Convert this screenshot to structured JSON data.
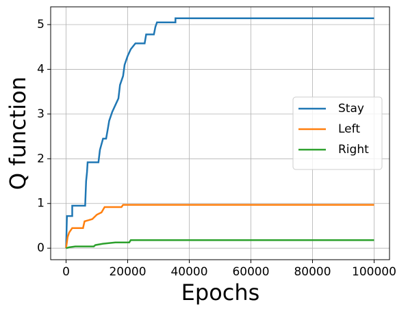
{
  "chart_data": {
    "type": "line",
    "x_label": "Epochs",
    "y_label": "Q function",
    "xlim": [
      -5000,
      105000
    ],
    "ylim": [
      -0.257,
      5.397
    ],
    "xticks": [
      0,
      20000,
      40000,
      60000,
      80000,
      100000
    ],
    "yticks": [
      0,
      1,
      2,
      3,
      4,
      5
    ],
    "grid": true,
    "legend": "center right",
    "series": [
      {
        "name": "Stay",
        "color": "#1f77b4",
        "x": [
          0,
          300,
          2000,
          2000,
          6200,
          6500,
          6800,
          7000,
          10500,
          11000,
          12000,
          13000,
          13500,
          14000,
          15000,
          16000,
          17000,
          17500,
          18500,
          19000,
          20000,
          21000,
          22500,
          25500,
          26000,
          28500,
          29000,
          29500,
          35500,
          35500,
          100000
        ],
        "values": [
          0,
          0.72,
          0.72,
          0.95,
          0.95,
          1.5,
          1.7,
          1.92,
          1.92,
          2.2,
          2.45,
          2.45,
          2.65,
          2.85,
          3.05,
          3.2,
          3.35,
          3.65,
          3.85,
          4.1,
          4.3,
          4.45,
          4.58,
          4.58,
          4.78,
          4.78,
          4.95,
          5.05,
          5.05,
          5.14,
          5.14
        ]
      },
      {
        "name": "Left",
        "color": "#ff7f0e",
        "x": [
          0,
          500,
          1000,
          2000,
          5500,
          6000,
          8500,
          10000,
          11500,
          12500,
          18000,
          18500,
          100000
        ],
        "values": [
          0,
          0.25,
          0.35,
          0.45,
          0.45,
          0.6,
          0.65,
          0.75,
          0.8,
          0.92,
          0.92,
          0.97,
          0.97
        ]
      },
      {
        "name": "Right",
        "color": "#2ca02c",
        "x": [
          0,
          1000,
          3000,
          9000,
          9500,
          12000,
          16000,
          20500,
          21000,
          100000
        ],
        "values": [
          0,
          0.02,
          0.04,
          0.04,
          0.07,
          0.1,
          0.13,
          0.13,
          0.18,
          0.18
        ]
      }
    ]
  }
}
